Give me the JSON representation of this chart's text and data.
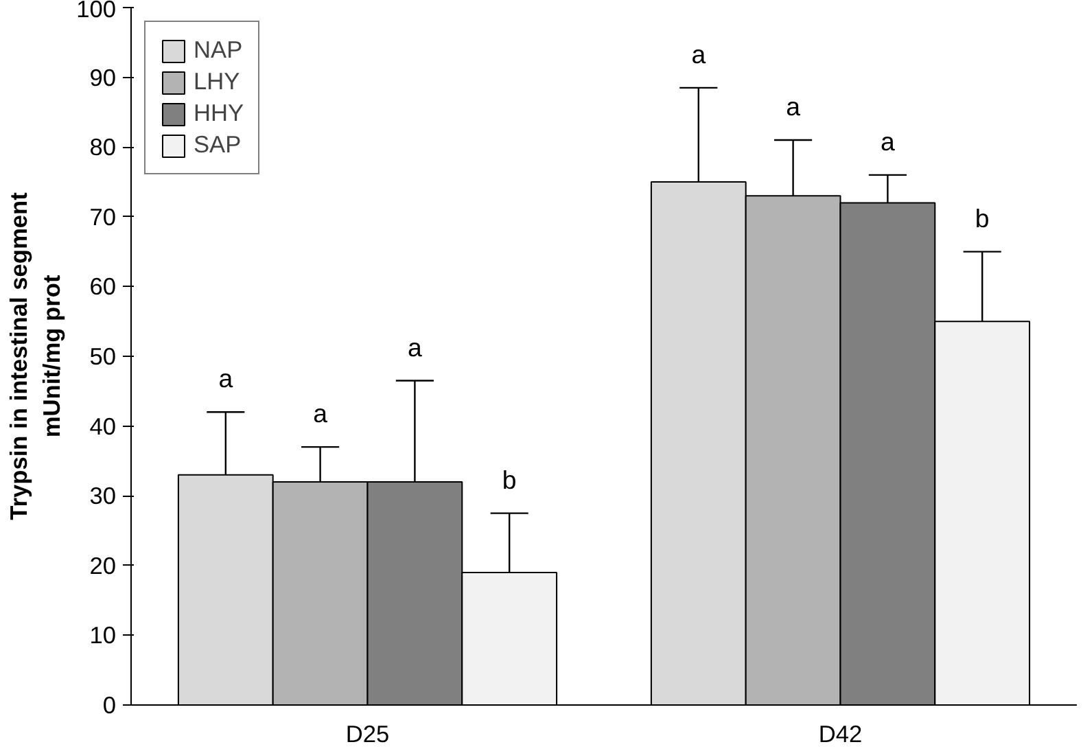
{
  "chart_data": {
    "type": "bar",
    "ylabel": "Trypsin in intestinal segment\nmUnit/mg prot",
    "categories": [
      "D25",
      "D42"
    ],
    "ylim": [
      0,
      100
    ],
    "yticks": [
      0,
      10,
      20,
      30,
      40,
      50,
      60,
      70,
      80,
      90,
      100
    ],
    "grid": false,
    "legend": "top left",
    "series": [
      {
        "name": "NAP",
        "color": "#d9d9d9",
        "values": [
          33,
          75
        ],
        "errors": [
          [
            33,
            42
          ],
          [
            75,
            88.5
          ]
        ]
      },
      {
        "name": "LHY",
        "color": "#b3b3b3",
        "values": [
          32,
          73
        ],
        "errors": [
          [
            32,
            37
          ],
          [
            73,
            81
          ]
        ]
      },
      {
        "name": "HHY",
        "color": "#808080",
        "values": [
          32,
          72
        ],
        "errors": [
          [
            32,
            46.5
          ],
          [
            72,
            76
          ]
        ]
      },
      {
        "name": "SAP",
        "color": "#f2f2f2",
        "values": [
          19,
          55
        ],
        "errors": [
          [
            19,
            27.5
          ],
          [
            55,
            65
          ]
        ]
      }
    ],
    "annotations": [
      "a",
      "a",
      "a",
      "b",
      "a",
      "a",
      "a",
      "b"
    ]
  }
}
